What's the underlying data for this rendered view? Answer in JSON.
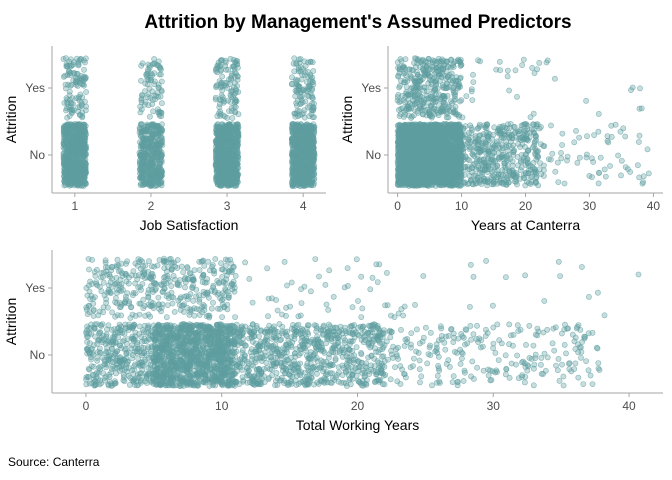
{
  "title": "Attrition by Management's Assumed Predictors",
  "caption": "Source: Canterra",
  "point_color": "#5f9ea0",
  "chart_data": [
    {
      "type": "scatter",
      "jitter": true,
      "xlabel": "Job Satisfaction",
      "ylabel": "Attrition",
      "categories_y": [
        "No",
        "Yes"
      ],
      "xlim": [
        0.7,
        4.3
      ],
      "xticks": [
        1,
        2,
        3,
        4
      ],
      "grid": false,
      "groups": [
        {
          "attrition": "No",
          "x": 1,
          "count": 700,
          "spread": 0.15
        },
        {
          "attrition": "Yes",
          "x": 1,
          "count": 110,
          "spread": 0.15
        },
        {
          "attrition": "No",
          "x": 2,
          "count": 420,
          "spread": 0.15
        },
        {
          "attrition": "Yes",
          "x": 2,
          "count": 80,
          "spread": 0.15
        },
        {
          "attrition": "No",
          "x": 3,
          "count": 700,
          "spread": 0.15
        },
        {
          "attrition": "Yes",
          "x": 3,
          "count": 110,
          "spread": 0.15
        },
        {
          "attrition": "No",
          "x": 4,
          "count": 700,
          "spread": 0.15
        },
        {
          "attrition": "Yes",
          "x": 4,
          "count": 110,
          "spread": 0.15
        }
      ]
    },
    {
      "type": "scatter",
      "jitter": true,
      "xlabel": "Years at Canterra",
      "ylabel": "Attrition",
      "categories_y": [
        "No",
        "Yes"
      ],
      "xlim": [
        -1.5,
        41.5
      ],
      "xticks": [
        0,
        10,
        20,
        30,
        40
      ],
      "grid": false,
      "groups": [
        {
          "attrition": "No",
          "x_range": [
            0,
            10
          ],
          "count": 2200
        },
        {
          "attrition": "No",
          "x_range": [
            10,
            22
          ],
          "count": 450
        },
        {
          "attrition": "No",
          "x_range": [
            22,
            40
          ],
          "count": 70
        },
        {
          "attrition": "Yes",
          "x_range": [
            0,
            10
          ],
          "count": 380
        },
        {
          "attrition": "Yes",
          "x_range": [
            10,
            23
          ],
          "count": 25
        },
        {
          "attrition": "Yes",
          "x_range": [
            23,
            40
          ],
          "count": 10
        }
      ]
    },
    {
      "type": "scatter",
      "jitter": true,
      "xlabel": "Total Working Years",
      "ylabel": "Attrition",
      "categories_y": [
        "No",
        "Yes"
      ],
      "xlim": [
        -2.5,
        42.5
      ],
      "xticks": [
        0,
        10,
        20,
        30,
        40
      ],
      "grid": false,
      "groups": [
        {
          "attrition": "No",
          "x_range": [
            0,
            5
          ],
          "count": 350
        },
        {
          "attrition": "No",
          "x_range": [
            5,
            11
          ],
          "count": 1200
        },
        {
          "attrition": "No",
          "x_range": [
            11,
            22
          ],
          "count": 750
        },
        {
          "attrition": "No",
          "x_range": [
            22,
            38
          ],
          "count": 250
        },
        {
          "attrition": "Yes",
          "x_range": [
            0,
            11
          ],
          "count": 400
        },
        {
          "attrition": "Yes",
          "x_range": [
            11,
            25
          ],
          "count": 55
        },
        {
          "attrition": "Yes",
          "x_range": [
            25,
            41
          ],
          "count": 15
        }
      ]
    }
  ]
}
